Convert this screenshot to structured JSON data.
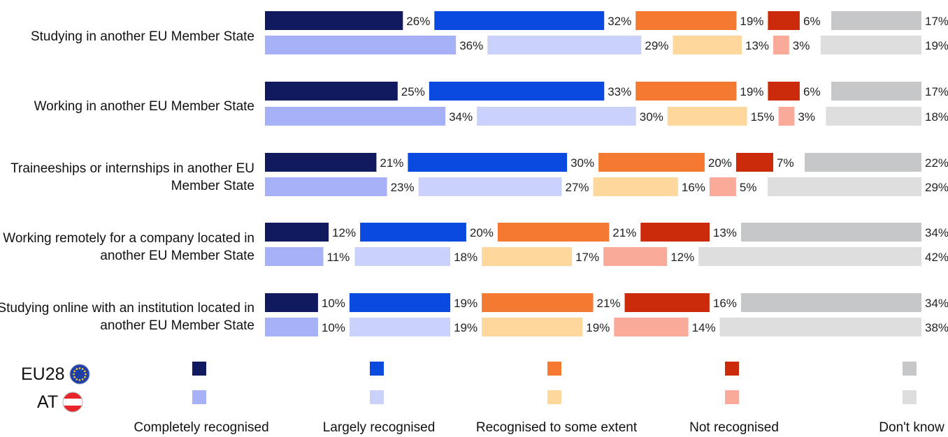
{
  "chart_data": {
    "type": "bar",
    "stacked": true,
    "orientation": "horizontal",
    "categories": [
      "Studying in another EU Member State",
      "Working in another EU Member State",
      "Traineeships or internships in another EU Member State",
      "Working remotely for a company located in another EU Member State",
      "Studying online with an institution located in another EU Member State"
    ],
    "groups": [
      "EU28",
      "AT"
    ],
    "series": [
      {
        "name": "Completely recognised",
        "colors": {
          "EU28": "#111a5e",
          "AT": "#a7b1f7"
        },
        "values": {
          "EU28": [
            26,
            25,
            21,
            12,
            10
          ],
          "AT": [
            36,
            34,
            23,
            11,
            10
          ]
        }
      },
      {
        "name": "Largely recognised",
        "colors": {
          "EU28": "#0a4adf",
          "AT": "#cad1fb"
        },
        "values": {
          "EU28": [
            32,
            33,
            30,
            20,
            19
          ],
          "AT": [
            29,
            30,
            27,
            18,
            19
          ]
        }
      },
      {
        "name": "Recognised to some extent",
        "colors": {
          "EU28": "#f47a31",
          "AT": "#fdd79c"
        },
        "values": {
          "EU28": [
            19,
            19,
            20,
            21,
            21
          ],
          "AT": [
            13,
            15,
            16,
            17,
            19
          ]
        }
      },
      {
        "name": "Not recognised",
        "colors": {
          "EU28": "#cc2b0b",
          "AT": "#f9aa98"
        },
        "values": {
          "EU28": [
            6,
            6,
            7,
            13,
            16
          ],
          "AT": [
            3,
            3,
            5,
            12,
            14
          ]
        }
      },
      {
        "name": "Don't know",
        "colors": {
          "EU28": "#c5c7c9",
          "AT": "#dedede"
        },
        "values": {
          "EU28": [
            17,
            17,
            22,
            34,
            34
          ],
          "AT": [
            19,
            18,
            29,
            42,
            38
          ]
        }
      }
    ],
    "value_suffix": "%"
  },
  "legend": {
    "groups": [
      {
        "label": "EU28",
        "icon": "eu-flag-icon"
      },
      {
        "label": "AT",
        "icon": "austria-flag-icon"
      }
    ]
  }
}
